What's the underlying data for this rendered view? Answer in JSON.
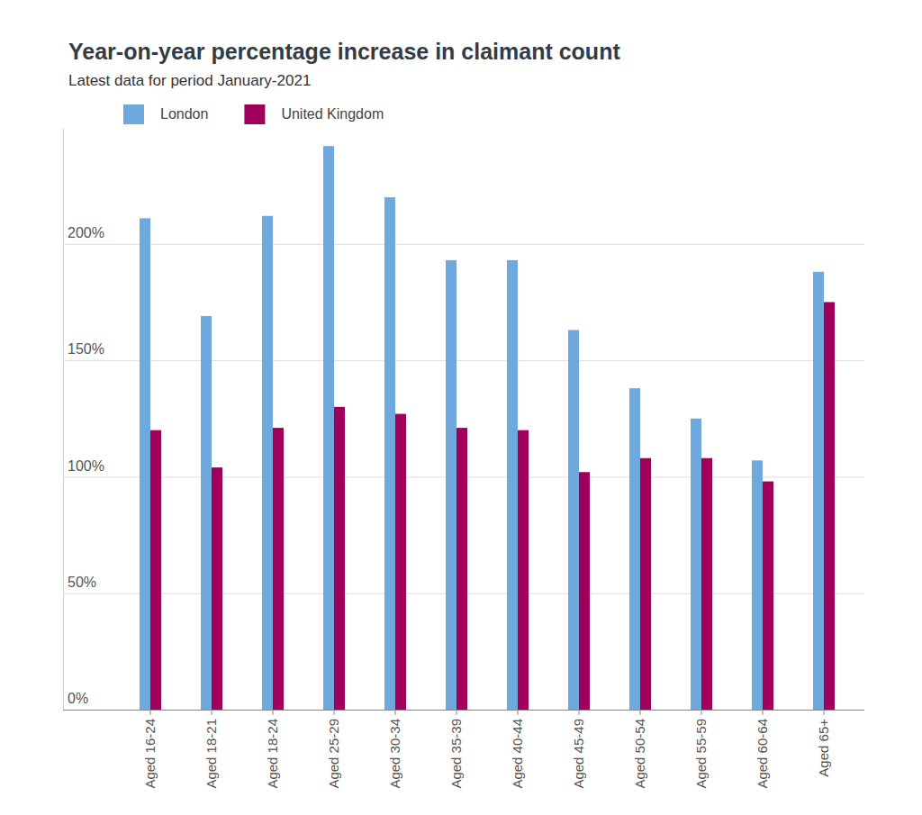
{
  "chart_data": {
    "type": "bar",
    "title": "Year-on-year percentage increase in claimant count",
    "subtitle": "Latest data for period January-2021",
    "categories": [
      "Aged 16-24",
      "Aged 18-21",
      "Aged 18-24",
      "Aged 25-29",
      "Aged 30-34",
      "Aged 35-39",
      "Aged 40-44",
      "Aged 45-49",
      "Aged 50-54",
      "Aged 55-59",
      "Aged 60-64",
      "Aged 65+"
    ],
    "series": [
      {
        "name": "London",
        "color": "#6fa8dc",
        "values": [
          211,
          169,
          212,
          242,
          220,
          193,
          193,
          163,
          138,
          125,
          107,
          188
        ]
      },
      {
        "name": "United Kingdom",
        "color": "#a0005c",
        "values": [
          120,
          104,
          121,
          130,
          127,
          121,
          120,
          102,
          108,
          108,
          98,
          175
        ]
      }
    ],
    "ylim": [
      0,
      250
    ],
    "yticks": [
      {
        "value": 0,
        "label": "0%"
      },
      {
        "value": 50,
        "label": "50%"
      },
      {
        "value": 100,
        "label": "100%"
      },
      {
        "value": 150,
        "label": "150%"
      },
      {
        "value": 200,
        "label": "200%"
      }
    ],
    "grid": true,
    "legend": "top-left"
  }
}
